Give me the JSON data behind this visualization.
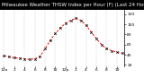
{
  "title": "Milwaukee Weather THSW Index per Hour (F) (Last 24 Hours)",
  "hours": [
    0,
    1,
    2,
    3,
    4,
    5,
    6,
    7,
    8,
    9,
    10,
    11,
    12,
    13,
    14,
    15,
    16,
    17,
    18,
    19,
    20,
    21,
    22,
    23
  ],
  "values": [
    38,
    36,
    34,
    33,
    32,
    31,
    32,
    36,
    52,
    68,
    82,
    93,
    102,
    108,
    112,
    108,
    98,
    85,
    72,
    60,
    52,
    48,
    45,
    43
  ],
  "line_color": "#ff0000",
  "marker_color": "#000000",
  "bg_color": "#ffffff",
  "title_bg": "#000000",
  "title_fg": "#ffffff",
  "grid_color": "#888888",
  "ylabel_right_values": [
    20,
    40,
    60,
    80,
    100,
    120
  ],
  "ylim": [
    18,
    128
  ],
  "xlim": [
    -0.5,
    23.5
  ],
  "title_fontsize": 4.0,
  "tick_fontsize": 3.2,
  "grid_xticks": [
    0,
    2,
    4,
    6,
    8,
    10,
    12,
    14,
    16,
    18,
    20,
    22
  ],
  "xtick_labels": [
    "12a",
    "2",
    "4",
    "6",
    "8",
    "10",
    "12p",
    "2",
    "4",
    "6",
    "8",
    "10"
  ]
}
